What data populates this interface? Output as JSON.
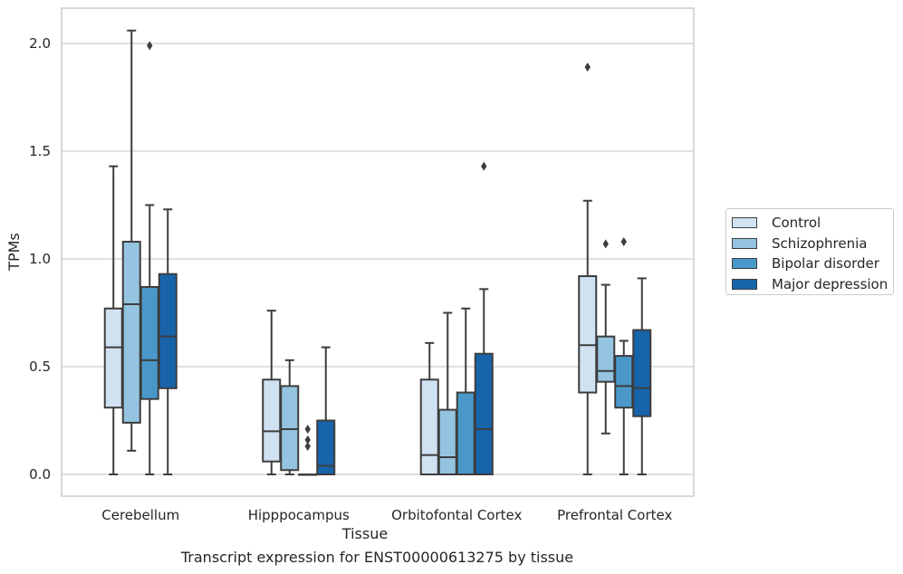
{
  "chart_data": {
    "type": "boxplot",
    "title": "",
    "caption": "Transcript expression for ENST00000613275 by tissue",
    "xlabel": "Tissue",
    "ylabel": "TPMs",
    "ylim": [
      -0.1,
      2.17
    ],
    "yticks": [
      0.0,
      0.5,
      1.0,
      1.5,
      2.0
    ],
    "ytick_labels": [
      "0.0",
      "0.5",
      "1.0",
      "1.5",
      "2.0"
    ],
    "grid": true,
    "legend_position": "right",
    "categories": [
      "Cerebellum",
      "Hipppocampus",
      "Orbitofontal Cortex",
      "Prefrontal Cortex"
    ],
    "series": [
      {
        "name": "Control",
        "color": "#d0e1f2",
        "boxes": [
          {
            "min": 0.0,
            "q1": 0.31,
            "median": 0.59,
            "q3": 0.77,
            "max": 1.43,
            "outliers": []
          },
          {
            "min": 0.0,
            "q1": 0.06,
            "median": 0.2,
            "q3": 0.44,
            "max": 0.76,
            "outliers": []
          },
          {
            "min": 0.0,
            "q1": 0.0,
            "median": 0.09,
            "q3": 0.44,
            "max": 0.61,
            "outliers": []
          },
          {
            "min": 0.0,
            "q1": 0.38,
            "median": 0.6,
            "q3": 0.92,
            "max": 1.27,
            "outliers": [
              1.89
            ]
          }
        ]
      },
      {
        "name": "Schizophrenia",
        "color": "#94c4df",
        "boxes": [
          {
            "min": 0.11,
            "q1": 0.24,
            "median": 0.79,
            "q3": 1.08,
            "max": 2.06,
            "outliers": []
          },
          {
            "min": 0.0,
            "q1": 0.02,
            "median": 0.21,
            "q3": 0.41,
            "max": 0.53,
            "outliers": []
          },
          {
            "min": 0.0,
            "q1": 0.0,
            "median": 0.08,
            "q3": 0.3,
            "max": 0.75,
            "outliers": []
          },
          {
            "min": 0.19,
            "q1": 0.43,
            "median": 0.48,
            "q3": 0.64,
            "max": 0.88,
            "outliers": [
              1.07
            ]
          }
        ]
      },
      {
        "name": "Bipolar disorder",
        "color": "#4a98c9",
        "boxes": [
          {
            "min": 0.0,
            "q1": 0.35,
            "median": 0.53,
            "q3": 0.87,
            "max": 1.25,
            "outliers": [
              1.99
            ]
          },
          {
            "min": 0.0,
            "q1": 0.0,
            "median": 0.0,
            "q3": 0.0,
            "max": 0.0,
            "outliers": [
              0.13,
              0.16,
              0.21
            ]
          },
          {
            "min": 0.0,
            "q1": 0.0,
            "median": 0.0,
            "q3": 0.38,
            "max": 0.77,
            "outliers": []
          },
          {
            "min": 0.0,
            "q1": 0.31,
            "median": 0.41,
            "q3": 0.55,
            "max": 0.62,
            "outliers": [
              1.08
            ]
          }
        ]
      },
      {
        "name": "Major depression",
        "color": "#1764ab",
        "boxes": [
          {
            "min": 0.0,
            "q1": 0.4,
            "median": 0.64,
            "q3": 0.93,
            "max": 1.23,
            "outliers": []
          },
          {
            "min": 0.0,
            "q1": 0.0,
            "median": 0.04,
            "q3": 0.25,
            "max": 0.59,
            "outliers": []
          },
          {
            "min": 0.0,
            "q1": 0.0,
            "median": 0.21,
            "q3": 0.56,
            "max": 0.86,
            "outliers": [
              1.43
            ]
          },
          {
            "min": 0.0,
            "q1": 0.27,
            "median": 0.4,
            "q3": 0.67,
            "max": 0.91,
            "outliers": []
          }
        ]
      }
    ]
  }
}
